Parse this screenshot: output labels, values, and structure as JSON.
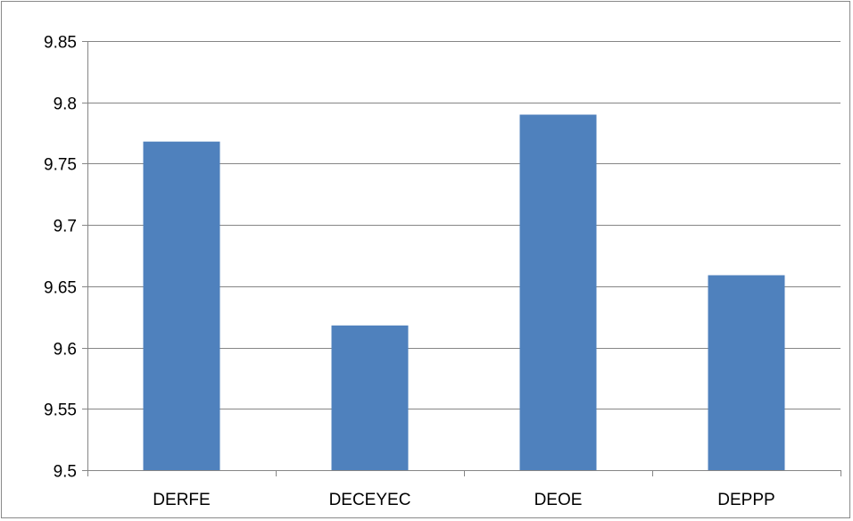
{
  "chart_data": {
    "type": "bar",
    "categories": [
      "DERFE",
      "DECEYEC",
      "DEOE",
      "DEPPP"
    ],
    "values": [
      9.768,
      9.618,
      9.79,
      9.659
    ],
    "title": "",
    "xlabel": "",
    "ylabel": "",
    "ylim": [
      9.5,
      9.85
    ],
    "yticks": [
      9.5,
      9.55,
      9.6,
      9.65,
      9.7,
      9.75,
      9.8,
      9.85
    ],
    "ytick_labels": [
      "9.5",
      "9.55",
      "9.6",
      "9.65",
      "9.7",
      "9.75",
      "9.8",
      "9.85"
    ],
    "grid": true,
    "legend": "none",
    "colors": {
      "bar": "#4F81BD",
      "grid": "#868686",
      "axis": "#868686",
      "frame": "#898989",
      "text": "#000000"
    }
  }
}
